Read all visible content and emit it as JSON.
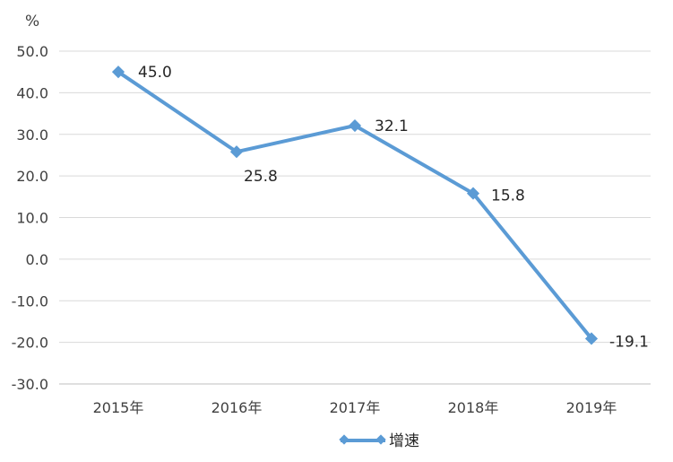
{
  "chart_data": {
    "type": "line",
    "unit_label": "%",
    "categories": [
      "2015年",
      "2016年",
      "2017年",
      "2018年",
      "2019年"
    ],
    "series": [
      {
        "name": "增速",
        "values": [
          45.0,
          25.8,
          32.1,
          15.8,
          -19.1
        ],
        "labels": [
          "45.0",
          "25.8",
          "32.1",
          "15.8",
          "-19.1"
        ]
      }
    ],
    "ylim": [
      -30,
      50
    ],
    "yticks": [
      50,
      40,
      30,
      20,
      10,
      0,
      -10,
      -20,
      -30
    ],
    "ytick_labels": [
      "50.0",
      "40.0",
      "30.0",
      "20.0",
      "10.0",
      "0.0",
      "-10.0",
      "-20.0",
      "-30.0"
    ],
    "grid": true,
    "legend": "bottom",
    "colors": {
      "series": "#5B9BD5",
      "grid": "#D9D9D9",
      "axis": "#BFBFBF"
    }
  }
}
